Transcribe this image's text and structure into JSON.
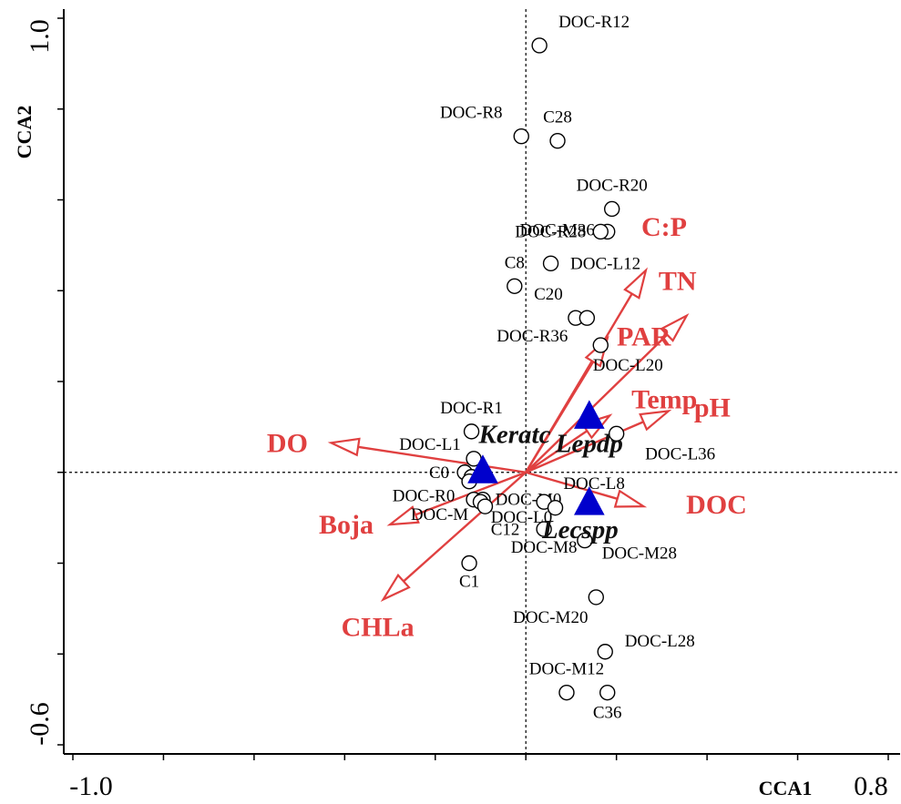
{
  "chart_data": {
    "type": "scatter",
    "subtype": "cca-triplot",
    "title": "",
    "xlabel": "CCA1",
    "ylabel": "CCA2",
    "xlim": [
      -1.0,
      0.8
    ],
    "ylim": [
      -0.6,
      1.0
    ],
    "x_tick_labels": [
      "-1.0",
      "0.8"
    ],
    "y_tick_labels": [
      "1.0",
      "-0.6"
    ],
    "colors": {
      "vector": "#e04040",
      "species": "#0000cc",
      "site": "#000000"
    },
    "sites": [
      {
        "label": "DOC-R12",
        "x": 0.03,
        "y": 0.94
      },
      {
        "label": "DOC-R8",
        "x": -0.01,
        "y": 0.74
      },
      {
        "label": "C28",
        "x": 0.07,
        "y": 0.73
      },
      {
        "label": "DOC-R20",
        "x": 0.19,
        "y": 0.58
      },
      {
        "label": "DOC-M36",
        "x": 0.18,
        "y": 0.53
      },
      {
        "label": "DOC-R28",
        "x": 0.165,
        "y": 0.53
      },
      {
        "label": "DOC-L12",
        "x": 0.055,
        "y": 0.46
      },
      {
        "label": "C8",
        "x": -0.025,
        "y": 0.41
      },
      {
        "label": "C20",
        "x": 0.11,
        "y": 0.34
      },
      {
        "label": "DOC-R36",
        "x": 0.135,
        "y": 0.34
      },
      {
        "label": "DOC-L20",
        "x": 0.165,
        "y": 0.28
      },
      {
        "label": "DOC-R1",
        "x": -0.12,
        "y": 0.09
      },
      {
        "label": "DOC-L36",
        "x": 0.2,
        "y": 0.085
      },
      {
        "label": "DOC-L1",
        "x": -0.115,
        "y": 0.03
      },
      {
        "label": "C0",
        "x": -0.135,
        "y": 0.0
      },
      {
        "label": "",
        "x": -0.12,
        "y": -0.01
      },
      {
        "label": "",
        "x": -0.125,
        "y": -0.02
      },
      {
        "label": "DOC-R0",
        "x": -0.115,
        "y": -0.06
      },
      {
        "label": "DOC-M0",
        "x": -0.095,
        "y": -0.06
      },
      {
        "label": "DOC-M",
        "x": -0.1,
        "y": -0.065
      },
      {
        "label": "DOC-L0",
        "x": -0.09,
        "y": -0.075
      },
      {
        "label": "DOC-L8",
        "x": 0.04,
        "y": -0.065
      },
      {
        "label": "C12",
        "x": 0.065,
        "y": -0.078
      },
      {
        "label": "DOC-M8",
        "x": 0.04,
        "y": -0.125
      },
      {
        "label": "DOC-M28",
        "x": 0.13,
        "y": -0.15
      },
      {
        "label": "C1",
        "x": -0.125,
        "y": -0.2
      },
      {
        "label": "DOC-M20",
        "x": 0.155,
        "y": -0.275
      },
      {
        "label": "DOC-L28",
        "x": 0.175,
        "y": -0.395
      },
      {
        "label": "DOC-M12",
        "x": 0.09,
        "y": -0.485
      },
      {
        "label": "C36",
        "x": 0.18,
        "y": -0.485
      }
    ],
    "species": [
      {
        "label": "Keratc",
        "x": -0.095,
        "y": 0.005
      },
      {
        "label": "Lepdp",
        "x": 0.14,
        "y": 0.125
      },
      {
        "label": "Lecspp",
        "x": 0.14,
        "y": -0.065
      }
    ],
    "vectors": [
      {
        "label": "C:P",
        "x": 0.265,
        "y": 0.445
      },
      {
        "label": "TN",
        "x": 0.355,
        "y": 0.345
      },
      {
        "label": "PAR",
        "x": 0.18,
        "y": 0.295
      },
      {
        "label": "Temp",
        "x": 0.185,
        "y": 0.125
      },
      {
        "label": "pH",
        "x": 0.315,
        "y": 0.135
      },
      {
        "label": "DOC",
        "x": 0.26,
        "y": -0.075
      },
      {
        "label": "DO",
        "x": -0.43,
        "y": 0.065
      },
      {
        "label": "Boja",
        "x": -0.3,
        "y": -0.115
      },
      {
        "label": "CHLa",
        "x": -0.315,
        "y": -0.28
      }
    ]
  }
}
